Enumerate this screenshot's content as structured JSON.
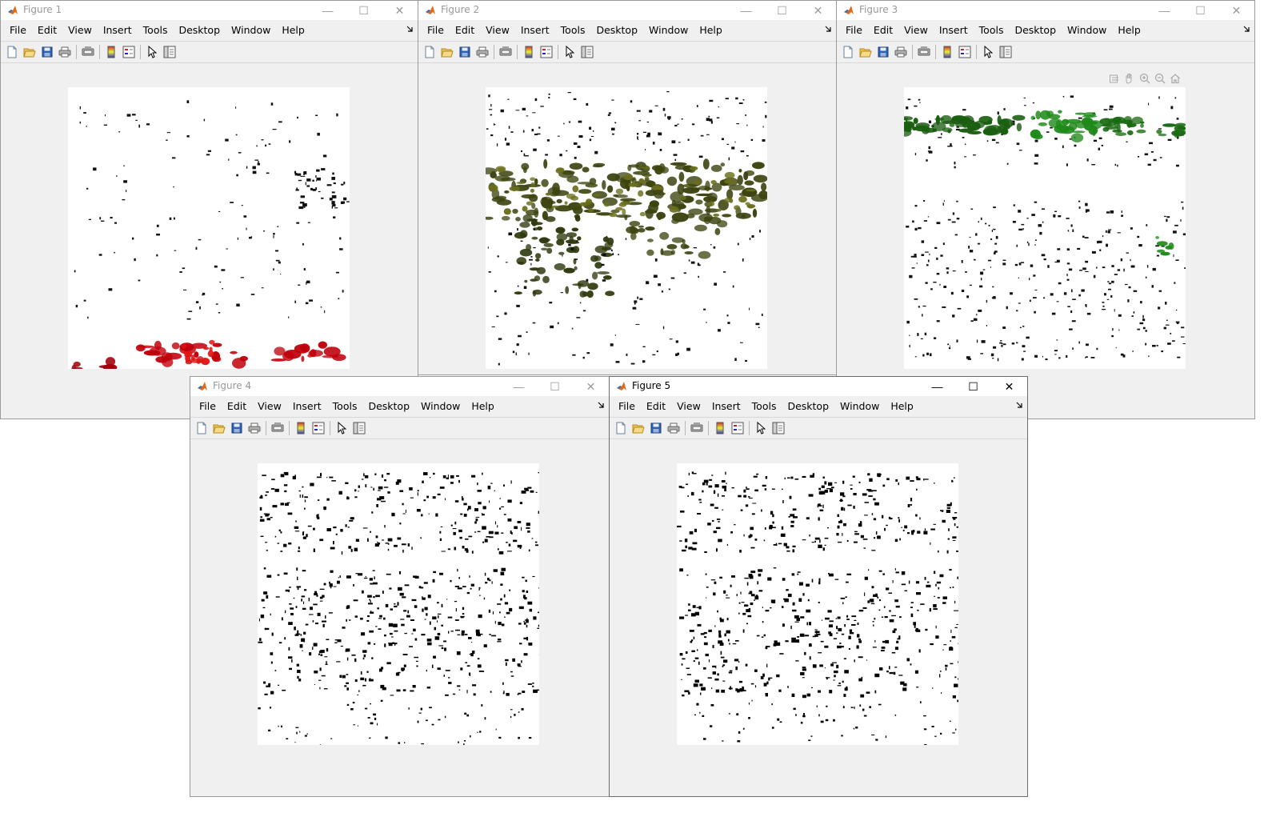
{
  "menu": [
    "File",
    "Edit",
    "View",
    "Insert",
    "Tools",
    "Desktop",
    "Window",
    "Help"
  ],
  "menu_overflow_icon": "toolbar-dock-arrow-icon",
  "toolbar_icons": [
    "new-figure-icon",
    "open-icon",
    "save-icon",
    "print-icon",
    "print-preview-icon",
    "colorbar-icon",
    "legend-icon",
    "pointer-icon",
    "property-inspector-icon"
  ],
  "axes_toolbar_icons": [
    "export-icon",
    "pan-icon",
    "zoom-in-icon",
    "zoom-out-icon",
    "home-icon"
  ],
  "window_controls": {
    "minimize": "—",
    "maximize": "☐",
    "close": "✕"
  },
  "figures": [
    {
      "title": "Figure 1",
      "active": false,
      "image": "black speckles with red blobs along bottom edge",
      "accent": "#c0000a"
    },
    {
      "title": "Figure 2",
      "active": false,
      "image": "dark olive band with dripping streaks",
      "accent": "#3e4410"
    },
    {
      "title": "Figure 3",
      "active": false,
      "image": "green band near top with black speckles",
      "accent": "#1a8a1a"
    },
    {
      "title": "Figure 4",
      "active": false,
      "image": "black speckle bands",
      "accent": "#000000"
    },
    {
      "title": "Figure 5",
      "active": true,
      "image": "black speckle bands",
      "accent": "#000000"
    }
  ]
}
